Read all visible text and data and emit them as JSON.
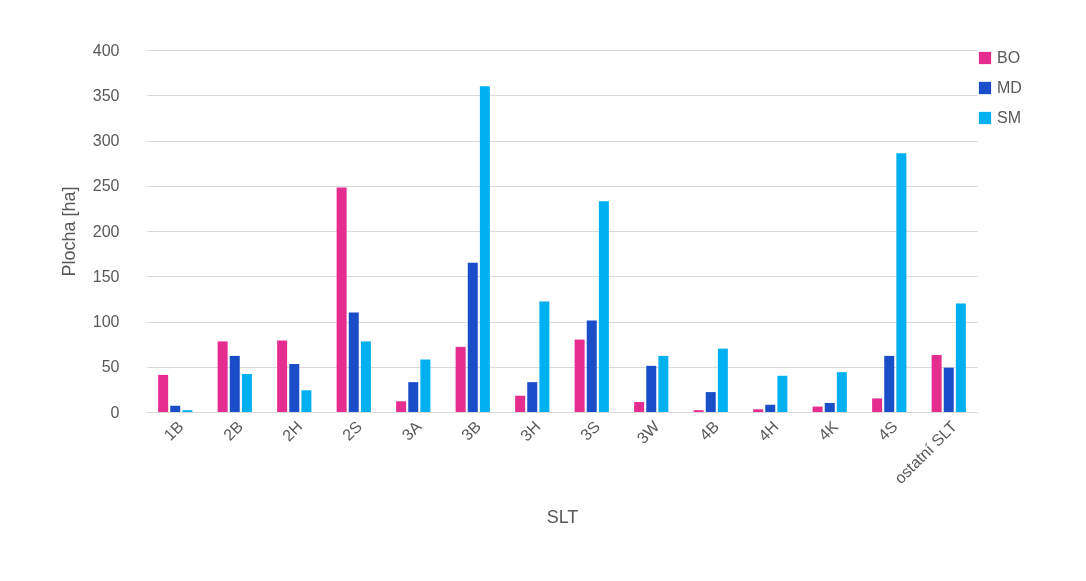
{
  "chart_data": {
    "type": "bar",
    "xlabel": "SLT",
    "ylabel": "Plocha [ha]",
    "categories": [
      "1B",
      "2B",
      "2H",
      "2S",
      "3A",
      "3B",
      "3H",
      "3S",
      "3W",
      "4B",
      "4H",
      "4K",
      "4S",
      "ostatní SLT"
    ],
    "series": [
      {
        "name": "BO",
        "color": "#e42d8f",
        "values": [
          41,
          78,
          79,
          248,
          12,
          72,
          18,
          80,
          11,
          2,
          3,
          6,
          15,
          63
        ]
      },
      {
        "name": "MD",
        "color": "#1a4ec8",
        "values": [
          7,
          62,
          53,
          110,
          33,
          165,
          33,
          101,
          51,
          22,
          8,
          10,
          62,
          49
        ]
      },
      {
        "name": "SM",
        "color": "#00b0f0",
        "values": [
          2,
          42,
          24,
          78,
          58,
          360,
          122,
          233,
          62,
          70,
          40,
          44,
          286,
          120
        ]
      }
    ],
    "ylim": [
      0,
      400
    ],
    "yticks": [
      0,
      50,
      100,
      150,
      200,
      250,
      300,
      350,
      400
    ],
    "grid": "y",
    "legend": "right"
  }
}
